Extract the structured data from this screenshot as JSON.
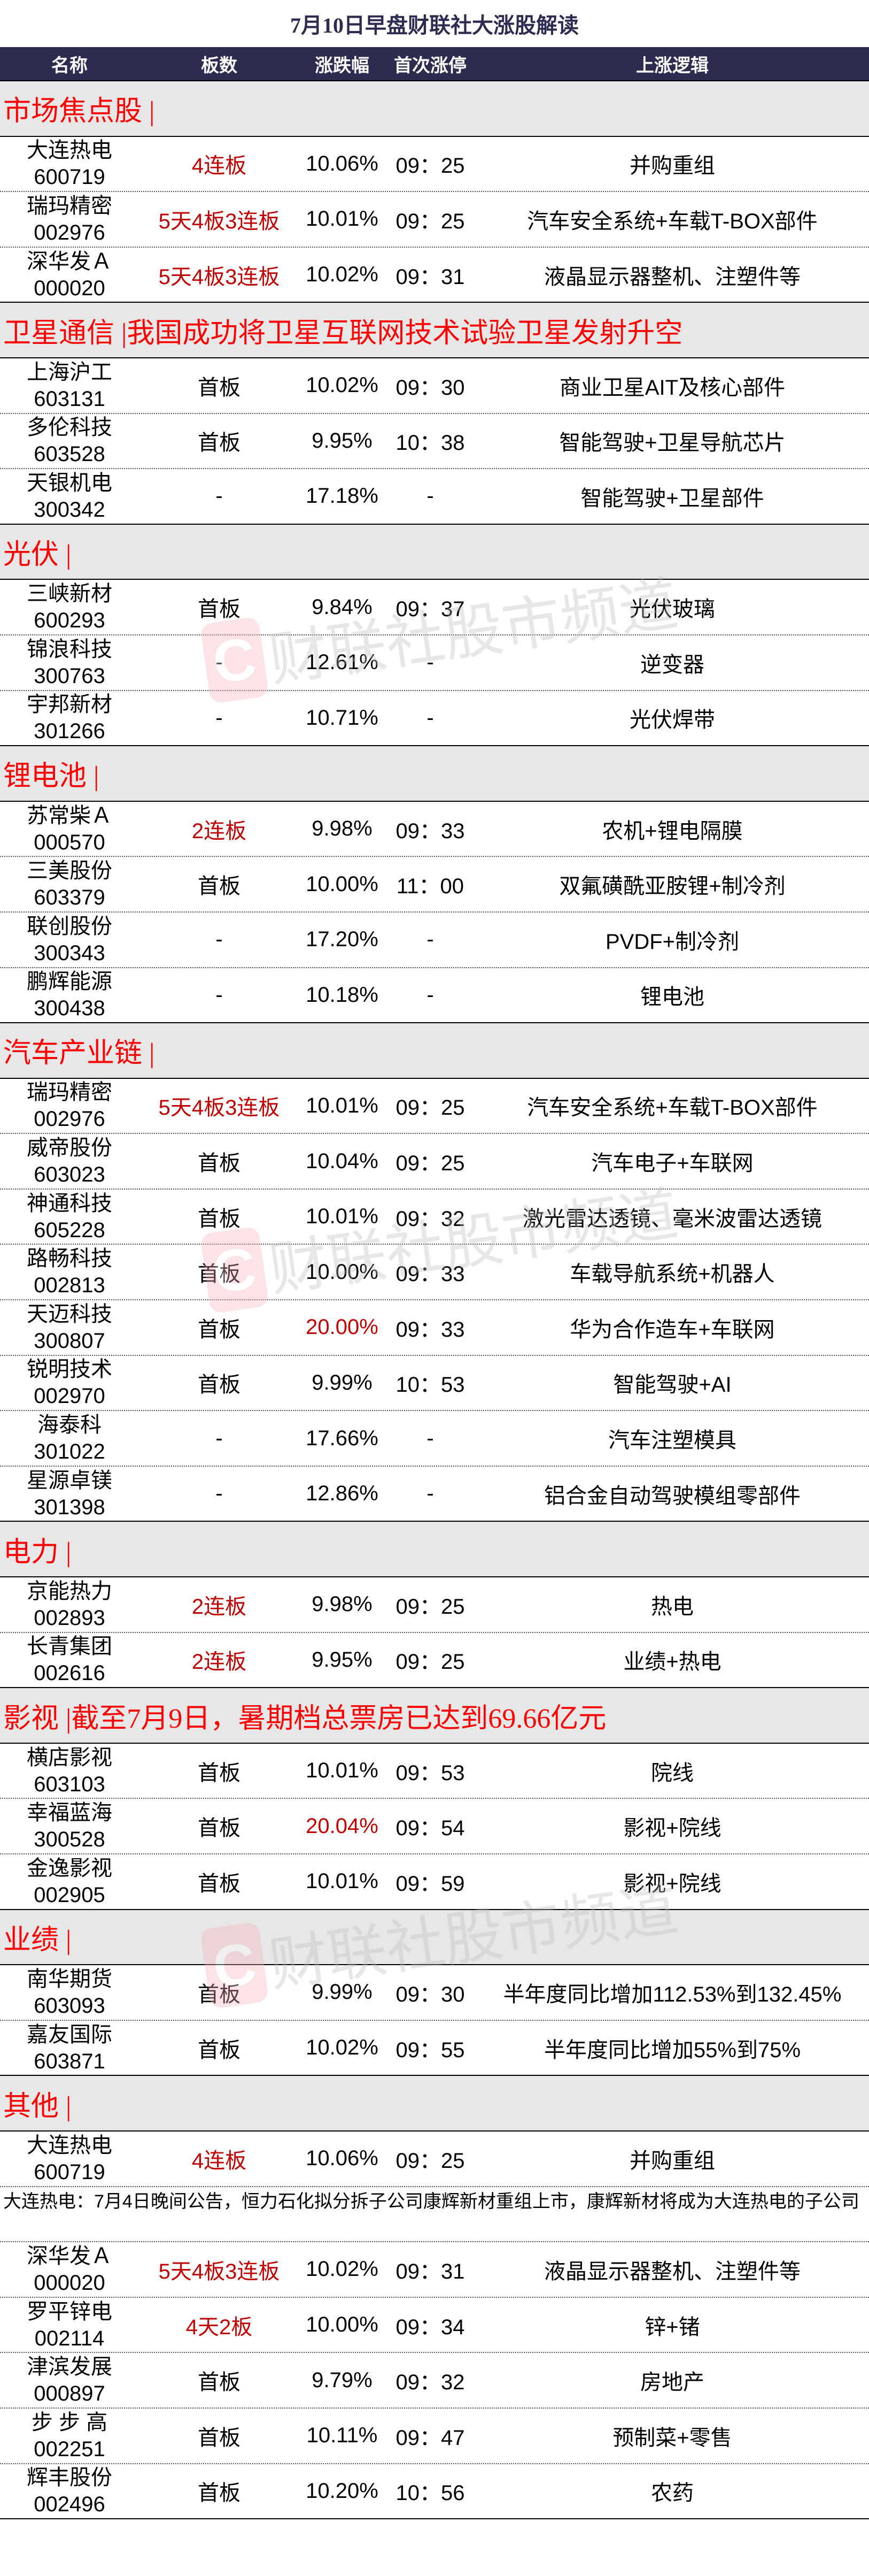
{
  "title": "7月10日早盘财联社大涨股解读",
  "watermark": "财联社股市频道",
  "columns": {
    "name": "名称",
    "board": "板数",
    "pct": "涨跌幅",
    "time": "首次涨停",
    "logic": "上涨逻辑"
  },
  "colors": {
    "header_bg": "#2d2c50",
    "section_bg": "#e7e7e7",
    "section_text": "#ff0000",
    "highlight": "#c00000"
  },
  "sections": [
    {
      "title": "市场焦点股 |",
      "rows": [
        {
          "name": "大连热电",
          "code": "600719",
          "board": "4连板",
          "board_red": true,
          "pct": "10.06%",
          "time": "09：25",
          "logic": "并购重组"
        },
        {
          "name": "瑞玛精密",
          "code": "002976",
          "board": "5天4板3连板",
          "board_red": true,
          "pct": "10.01%",
          "time": "09：25",
          "logic": "汽车安全系统+车载T-BOX部件"
        },
        {
          "name": "深华发Ａ",
          "code": "000020",
          "board": "5天4板3连板",
          "board_red": true,
          "pct": "10.02%",
          "time": "09：31",
          "logic": "液晶显示器整机、注塑件等"
        }
      ]
    },
    {
      "title": "卫星通信 |我国成功将卫星互联网技术试验卫星发射升空",
      "rows": [
        {
          "name": "上海沪工",
          "code": "603131",
          "board": "首板",
          "pct": "10.02%",
          "time": "09：30",
          "logic": "商业卫星AIT及核心部件"
        },
        {
          "name": "多伦科技",
          "code": "603528",
          "board": "首板",
          "pct": "9.95%",
          "time": "10：38",
          "logic": "智能驾驶+卫星导航芯片"
        },
        {
          "name": "天银机电",
          "code": "300342",
          "board": "-",
          "pct": "17.18%",
          "time": "-",
          "logic": "智能驾驶+卫星部件"
        }
      ]
    },
    {
      "title": "光伏 |",
      "rows": [
        {
          "name": "三峡新材",
          "code": "600293",
          "board": "首板",
          "pct": "9.84%",
          "time": "09：37",
          "logic": "光伏玻璃"
        },
        {
          "name": "锦浪科技",
          "code": "300763",
          "board": "-",
          "pct": "12.61%",
          "time": "-",
          "logic": "逆变器"
        },
        {
          "name": "宇邦新材",
          "code": "301266",
          "board": "-",
          "pct": "10.71%",
          "time": "-",
          "logic": "光伏焊带"
        }
      ]
    },
    {
      "title": "锂电池 |",
      "rows": [
        {
          "name": "苏常柴Ａ",
          "code": "000570",
          "board": "2连板",
          "board_red": true,
          "pct": "9.98%",
          "time": "09：33",
          "logic": "农机+锂电隔膜"
        },
        {
          "name": "三美股份",
          "code": "603379",
          "board": "首板",
          "pct": "10.00%",
          "time": "11：00",
          "logic": "双氟磺酰亚胺锂+制冷剂"
        },
        {
          "name": "联创股份",
          "code": "300343",
          "board": "-",
          "pct": "17.20%",
          "time": "-",
          "logic": "PVDF+制冷剂"
        },
        {
          "name": "鹏辉能源",
          "code": "300438",
          "board": "-",
          "pct": "10.18%",
          "time": "-",
          "logic": "锂电池"
        }
      ]
    },
    {
      "title": "汽车产业链 |",
      "rows": [
        {
          "name": "瑞玛精密",
          "code": "002976",
          "board": "5天4板3连板",
          "board_red": true,
          "pct": "10.01%",
          "time": "09：25",
          "logic": "汽车安全系统+车载T-BOX部件"
        },
        {
          "name": "威帝股份",
          "code": "603023",
          "board": "首板",
          "pct": "10.04%",
          "time": "09：25",
          "logic": "汽车电子+车联网"
        },
        {
          "name": "神通科技",
          "code": "605228",
          "board": "首板",
          "pct": "10.01%",
          "time": "09：32",
          "logic": "激光雷达透镜、毫米波雷达透镜"
        },
        {
          "name": "路畅科技",
          "code": "002813",
          "board": "首板",
          "pct": "10.00%",
          "time": "09：33",
          "logic": "车载导航系统+机器人"
        },
        {
          "name": "天迈科技",
          "code": "300807",
          "board": "首板",
          "pct": "20.00%",
          "pct_red": true,
          "time": "09：33",
          "logic": "华为合作造车+车联网"
        },
        {
          "name": "锐明技术",
          "code": "002970",
          "board": "首板",
          "pct": "9.99%",
          "time": "10：53",
          "logic": "智能驾驶+AI"
        },
        {
          "name": "海泰科",
          "code": "301022",
          "board": "-",
          "pct": "17.66%",
          "time": "-",
          "logic": "汽车注塑模具"
        },
        {
          "name": "星源卓镁",
          "code": "301398",
          "board": "-",
          "pct": "12.86%",
          "time": "-",
          "logic": "铝合金自动驾驶模组零部件"
        }
      ]
    },
    {
      "title": "电力 |",
      "rows": [
        {
          "name": "京能热力",
          "code": "002893",
          "board": "2连板",
          "board_red": true,
          "pct": "9.98%",
          "time": "09：25",
          "logic": "热电"
        },
        {
          "name": "长青集团",
          "code": "002616",
          "board": "2连板",
          "board_red": true,
          "pct": "9.95%",
          "time": "09：25",
          "logic": "业绩+热电"
        }
      ]
    },
    {
      "title": "影视 |截至7月9日，暑期档总票房已达到69.66亿元",
      "rows": [
        {
          "name": "横店影视",
          "code": "603103",
          "board": "首板",
          "pct": "10.01%",
          "time": "09：53",
          "logic": "院线"
        },
        {
          "name": "幸福蓝海",
          "code": "300528",
          "board": "首板",
          "pct": "20.04%",
          "pct_red": true,
          "time": "09：54",
          "logic": "影视+院线"
        },
        {
          "name": "金逸影视",
          "code": "002905",
          "board": "首板",
          "pct": "10.01%",
          "time": "09：59",
          "logic": "影视+院线"
        }
      ]
    },
    {
      "title": "业绩 |",
      "rows": [
        {
          "name": "南华期货",
          "code": "603093",
          "board": "首板",
          "pct": "9.99%",
          "time": "09：30",
          "logic": "半年度同比增加112.53%到132.45%"
        },
        {
          "name": "嘉友国际",
          "code": "603871",
          "board": "首板",
          "pct": "10.02%",
          "time": "09：55",
          "logic": "半年度同比增加55%到75%"
        }
      ]
    },
    {
      "title": "其他 |",
      "rows": [
        {
          "name": "大连热电",
          "code": "600719",
          "board": "4连板",
          "board_red": true,
          "pct": "10.06%",
          "time": "09：25",
          "logic": "并购重组"
        },
        {
          "note": "大连热电：7月4日晚间公告，恒力石化拟分拆子公司康辉新材重组上市，康辉新材将成为大连热电的子公司"
        },
        {
          "name": "深华发Ａ",
          "code": "000020",
          "board": "5天4板3连板",
          "board_red": true,
          "pct": "10.02%",
          "time": "09：31",
          "logic": "液晶显示器整机、注塑件等"
        },
        {
          "name": "罗平锌电",
          "code": "002114",
          "board": "4天2板",
          "board_red": true,
          "pct": "10.00%",
          "time": "09：34",
          "logic": "锌+锗"
        },
        {
          "name": "津滨发展",
          "code": "000897",
          "board": "首板",
          "pct": "9.79%",
          "time": "09：32",
          "logic": "房地产"
        },
        {
          "name": "步 步 高",
          "code": "002251",
          "board": "首板",
          "pct": "10.11%",
          "time": "09：47",
          "logic": "预制菜+零售"
        },
        {
          "name": "辉丰股份",
          "code": "002496",
          "board": "首板",
          "pct": "10.20%",
          "time": "10：56",
          "logic": "农药"
        }
      ]
    }
  ]
}
